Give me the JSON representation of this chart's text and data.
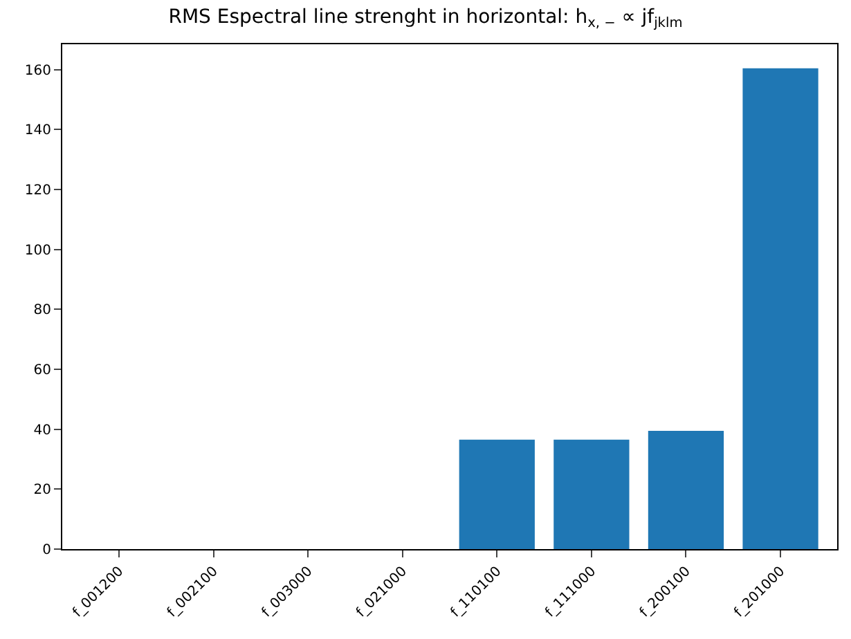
{
  "chart_data": {
    "type": "bar",
    "title": "RMS Espectral line strenght in horizontal: h$_{x, −}$ ∝ jf$_{jklm}$",
    "categories": [
      "f_001200",
      "f_002100",
      "f_003000",
      "f_021000",
      "f_110100",
      "f_111000",
      "f_200100",
      "f_201000"
    ],
    "series": [
      {
        "color": "#1f77b4",
        "values": [
          0,
          0,
          0,
          0,
          36.5,
          36.5,
          39.5,
          160.5
        ]
      }
    ],
    "ylim": [
      0,
      168.5
    ],
    "yticks": [
      0,
      20,
      40,
      60,
      80,
      100,
      120,
      140,
      160
    ]
  }
}
